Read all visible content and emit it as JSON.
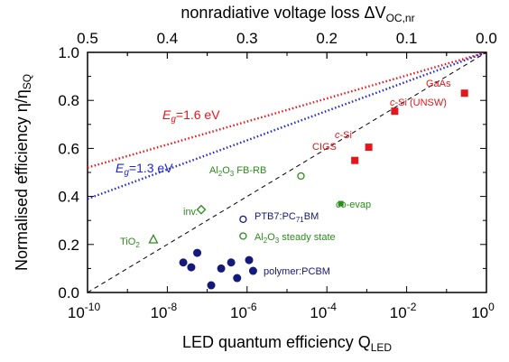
{
  "chart_data": {
    "type": "scatter",
    "x_axis": {
      "label_main": "LED quantum efficiency Q",
      "label_sub": "LED",
      "scale": "log",
      "range": [
        1e-10,
        1
      ],
      "ticks": [
        {
          "value": -10,
          "base": "10",
          "exp": "-10"
        },
        {
          "value": -8,
          "base": "10",
          "exp": "-8"
        },
        {
          "value": -6,
          "base": "10",
          "exp": "-6"
        },
        {
          "value": -4,
          "base": "10",
          "exp": "-4"
        },
        {
          "value": -2,
          "base": "10",
          "exp": "-2"
        },
        {
          "value": 0,
          "base": "10",
          "exp": "0"
        }
      ]
    },
    "top_axis": {
      "label_main": "nonradiative voltage loss ΔV",
      "label_sub": "OC,nr",
      "range": [
        0.5,
        0.0
      ],
      "ticks": [
        "0.5",
        "0.4",
        "0.3",
        "0.2",
        "0.1",
        "0.0"
      ]
    },
    "y_axis": {
      "label_main": "Normalised efficiency η/η",
      "label_sub": "SQ",
      "range": [
        0,
        1.0
      ],
      "ticks": [
        "0.0",
        "0.2",
        "0.4",
        "0.6",
        "0.8",
        "1.0"
      ]
    },
    "lines": [
      {
        "style": "dotted",
        "color": "#e8141b",
        "x": [
          -10,
          0
        ],
        "y": [
          0.52,
          1.0
        ]
      },
      {
        "style": "dotted",
        "color": "#1f26d6",
        "x": [
          -10,
          0
        ],
        "y": [
          0.39,
          1.0
        ]
      },
      {
        "style": "dashed",
        "color": "#000000",
        "x": [
          -10,
          0
        ],
        "y": [
          0.0,
          1.0
        ]
      }
    ],
    "line_labels": [
      {
        "main": "E",
        "sub": "g",
        "rest": "=1.6 eV",
        "color": "#e8141b"
      },
      {
        "main": "E",
        "sub": "g",
        "rest": "=1.3 eV",
        "color": "#1f26d6"
      }
    ],
    "series": [
      {
        "name": "polymer:PCBM",
        "marker": "filled-circle",
        "color": "#14197a",
        "points": [
          {
            "x": -7.6,
            "y": 0.125
          },
          {
            "x": -7.4,
            "y": 0.105
          },
          {
            "x": -7.25,
            "y": 0.165
          },
          {
            "x": -6.9,
            "y": 0.03
          },
          {
            "x": -6.65,
            "y": 0.1
          },
          {
            "x": -6.4,
            "y": 0.125
          },
          {
            "x": -6.25,
            "y": 0.06
          },
          {
            "x": -5.95,
            "y": 0.135
          },
          {
            "x": -5.85,
            "y": 0.09
          }
        ]
      },
      {
        "name": "PTB7:PC71BM",
        "marker": "open-circle",
        "color": "#14197a",
        "points": [
          {
            "x": -6.1,
            "y": 0.305
          }
        ]
      },
      {
        "name": "Al2O3 steady state",
        "marker": "open-circle",
        "color": "#2e8b1e",
        "points": [
          {
            "x": -6.1,
            "y": 0.235
          }
        ]
      },
      {
        "name": "Al2O3 FB-RB",
        "marker": "open-circle",
        "color": "#2e8b1e",
        "points": [
          {
            "x": -4.65,
            "y": 0.485
          }
        ]
      },
      {
        "name": "co-evap",
        "marker": "filled-square",
        "color": "#2e8b1e",
        "points": [
          {
            "x": -3.65,
            "y": 0.37
          }
        ]
      },
      {
        "name": "inv.",
        "marker": "open-diamond",
        "color": "#2e8b1e",
        "points": [
          {
            "x": -7.15,
            "y": 0.345
          }
        ]
      },
      {
        "name": "TiO2",
        "marker": "open-triangle",
        "color": "#2e8b1e",
        "points": [
          {
            "x": -8.35,
            "y": 0.22
          }
        ]
      },
      {
        "name": "CIGS",
        "marker": "filled-square",
        "color": "#e8141b",
        "points": [
          {
            "x": -3.3,
            "y": 0.55
          }
        ]
      },
      {
        "name": "c-Si",
        "marker": "filled-square",
        "color": "#e8141b",
        "points": [
          {
            "x": -2.95,
            "y": 0.605
          }
        ]
      },
      {
        "name": "c-Si (UNSW)",
        "marker": "filled-square",
        "color": "#e8141b",
        "points": [
          {
            "x": -2.3,
            "y": 0.755
          }
        ]
      },
      {
        "name": "GaAs",
        "marker": "filled-square",
        "color": "#e8141b",
        "points": [
          {
            "x": -0.55,
            "y": 0.83
          }
        ]
      }
    ],
    "annotations": [
      {
        "key": "gaas",
        "parts": [
          {
            "t": "GaAs"
          }
        ],
        "color": "#e8141b"
      },
      {
        "key": "csi_unsw",
        "parts": [
          {
            "t": "c",
            "i": true
          },
          {
            "t": "-Si (UNSW)"
          }
        ],
        "color": "#e8141b"
      },
      {
        "key": "csi",
        "parts": [
          {
            "t": "c",
            "i": true
          },
          {
            "t": "-Si"
          }
        ],
        "color": "#e8141b"
      },
      {
        "key": "cigs",
        "parts": [
          {
            "t": "CIGS"
          }
        ],
        "color": "#e8141b"
      },
      {
        "key": "al2o3_fbrb",
        "parts": [
          {
            "t": "Al"
          },
          {
            "t": "2",
            "sub": true
          },
          {
            "t": "O"
          },
          {
            "t": "3",
            "sub": true
          },
          {
            "t": " FB-RB"
          }
        ],
        "color": "#2e8b1e"
      },
      {
        "key": "coevap",
        "parts": [
          {
            "t": "co-evap"
          }
        ],
        "color": "#2e8b1e"
      },
      {
        "key": "inv",
        "parts": [
          {
            "t": "inv."
          }
        ],
        "color": "#2e8b1e"
      },
      {
        "key": "ptb7",
        "parts": [
          {
            "t": "PTB7:PC"
          },
          {
            "t": "71",
            "sub": true
          },
          {
            "t": "BM"
          }
        ],
        "color": "#14197a"
      },
      {
        "key": "al2o3_ss",
        "parts": [
          {
            "t": "Al"
          },
          {
            "t": "2",
            "sub": true
          },
          {
            "t": "O"
          },
          {
            "t": "3",
            "sub": true
          },
          {
            "t": " steady state"
          }
        ],
        "color": "#2e8b1e"
      },
      {
        "key": "tio2",
        "parts": [
          {
            "t": "TiO"
          },
          {
            "t": "2",
            "sub": true
          }
        ],
        "color": "#2e8b1e"
      },
      {
        "key": "polymer",
        "parts": [
          {
            "t": "polymer:PCBM"
          }
        ],
        "color": "#14197a"
      }
    ]
  }
}
